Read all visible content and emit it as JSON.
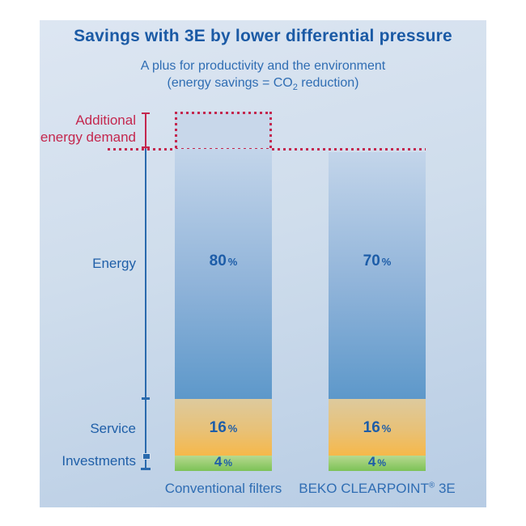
{
  "chart_data": {
    "type": "bar",
    "stacked": true,
    "title": "Savings with 3E by lower differential pressure",
    "subtitle": "A plus for productivity and the environment (energy savings = CO2 reduction)",
    "categories": [
      "Conventional filters",
      "BEKO CLEARPOINT® 3E"
    ],
    "series": [
      {
        "name": "Energy",
        "values": [
          80,
          70
        ]
      },
      {
        "name": "Service",
        "values": [
          16,
          16
        ]
      },
      {
        "name": "Investments",
        "values": [
          4,
          4
        ]
      }
    ],
    "unit": "%",
    "annotation": {
      "label": "Additional energy demand",
      "applies_to": "Conventional filters",
      "style": "red dotted box above conventional filters bar, dotted baseline across both bars"
    },
    "legend_position": "left",
    "grid": false
  },
  "display": {
    "subtitle_line1": "A plus for productivity and the environment",
    "subtitle_line2_a": "(energy savings = CO",
    "subtitle_line2_sub": "2",
    "subtitle_line2_b": " reduction)",
    "additional_line1": "Additional",
    "additional_line2": "energy demand",
    "percent_sign": "%",
    "cat_right_name": "BEKO CLEARPOINT",
    "cat_right_reg": "®",
    "cat_right_suffix": " 3E"
  },
  "colors": {
    "panel_background_top": "#dde6f2",
    "panel_background_bottom": "#b7cce4",
    "title_blue": "#1b5aa5",
    "subtitle_blue": "#2f6db3",
    "label_blue": "#1f5fa8",
    "percent_blue": "#1d5da8",
    "annotation_red": "#c4274e",
    "axis_blue": "#2a6aad",
    "energy_gradient": [
      "#c3d5ea",
      "#5d98ca"
    ],
    "service_gradient": [
      "#ddca9e",
      "#f6b84a"
    ],
    "investments_gradient": [
      "#b7d98f",
      "#7cc257"
    ]
  }
}
